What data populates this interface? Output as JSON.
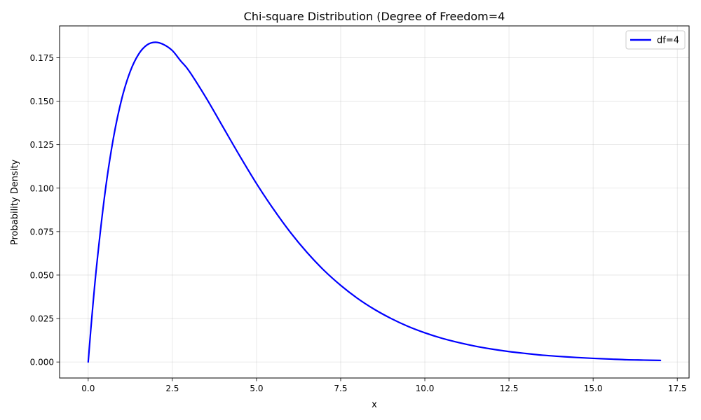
{
  "chart_data": {
    "type": "line",
    "title": "Chi-square Distribution (Degree of Freedom=4",
    "xlabel": "x",
    "ylabel": "Probability Density",
    "xlim": [
      -0.85,
      17.85
    ],
    "ylim": [
      -0.0092,
      0.1933
    ],
    "x_ticks": [
      0.0,
      2.5,
      5.0,
      7.5,
      10.0,
      12.5,
      15.0,
      17.5
    ],
    "x_tick_labels": [
      "0.0",
      "2.5",
      "5.0",
      "7.5",
      "10.0",
      "12.5",
      "15.0",
      "17.5"
    ],
    "y_ticks": [
      0.0,
      0.025,
      0.05,
      0.075,
      0.1,
      0.125,
      0.15,
      0.175
    ],
    "y_tick_labels": [
      "0.000",
      "0.025",
      "0.050",
      "0.075",
      "0.100",
      "0.125",
      "0.150",
      "0.175"
    ],
    "grid": true,
    "legend_position": "top-right",
    "series": [
      {
        "name": "df=4",
        "color": "#0000ff",
        "x": [
          0,
          0.1,
          0.25,
          0.5,
          0.75,
          1.0,
          1.25,
          1.5,
          1.75,
          2.0,
          2.25,
          2.5,
          2.75,
          3.0,
          3.5,
          4.0,
          4.5,
          5.0,
          5.5,
          6.0,
          6.5,
          7.0,
          7.5,
          8.0,
          8.5,
          9.0,
          9.5,
          10.0,
          10.5,
          11.0,
          11.5,
          12.0,
          12.5,
          13.0,
          13.5,
          14.0,
          14.5,
          15.0,
          15.5,
          16.0,
          16.5,
          17.0
        ],
        "y": [
          0.0,
          0.0238,
          0.0552,
          0.0974,
          0.1289,
          0.1516,
          0.1672,
          0.1771,
          0.1824,
          0.1839,
          0.1825,
          0.1791,
          0.1731,
          0.1673,
          0.152,
          0.1353,
          0.1186,
          0.1026,
          0.088,
          0.0747,
          0.063,
          0.0528,
          0.0441,
          0.0366,
          0.0303,
          0.025,
          0.0205,
          0.0168,
          0.0137,
          0.0112,
          0.0091,
          0.0074,
          0.006,
          0.0049,
          0.0039,
          0.0032,
          0.0026,
          0.0021,
          0.0017,
          0.0013,
          0.0011,
          0.0009
        ]
      }
    ]
  }
}
